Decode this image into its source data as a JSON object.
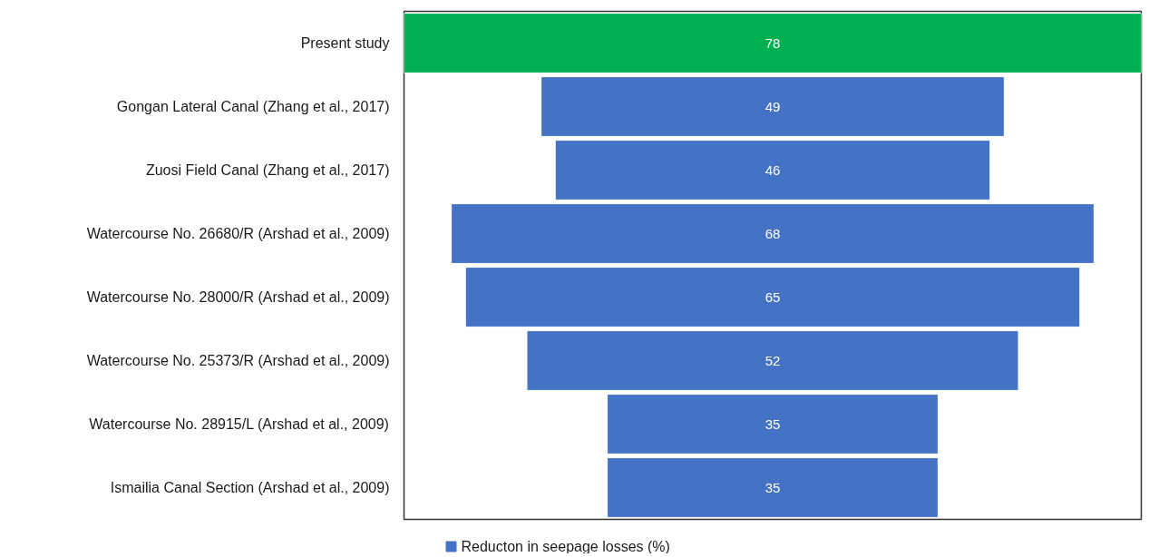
{
  "chart_data": {
    "type": "other",
    "categories": [
      "Present study",
      "Gongan Lateral Canal (Zhang et al., 2017)",
      "Zuosi Field Canal (Zhang et al., 2017)",
      "Watercourse No. 26680/R (Arshad et al., 2009)",
      "Watercourse No. 28000/R (Arshad et al., 2009)",
      "Watercourse No. 25373/R (Arshad et al., 2009)",
      "Watercourse No. 28915/L (Arshad et al., 2009)",
      "Ismailia Canal Section (Arshad et al., 2009)"
    ],
    "series": [
      {
        "name": "Reducton in seepage losses (%)",
        "color": "#4472c4",
        "colors": [
          "#00b050",
          "#4472c4",
          "#4472c4",
          "#4472c4",
          "#4472c4",
          "#4472c4",
          "#4472c4",
          "#4472c4"
        ],
        "values": [
          78,
          49,
          46,
          68,
          65,
          52,
          35,
          35
        ]
      }
    ],
    "data_labels": true,
    "legend": "bottom"
  }
}
